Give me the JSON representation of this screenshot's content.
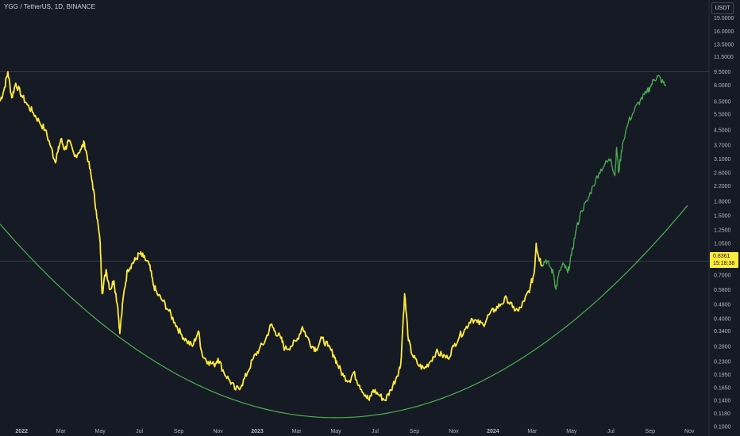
{
  "header": {
    "title": "YGG / TetherUS, 1D, BINANCE",
    "currency_button": "USDT"
  },
  "last_price": {
    "value": "0.8361",
    "countdown": "15:18:38"
  },
  "chart_data": {
    "type": "line",
    "scale": "log",
    "symbol": "YGG / TetherUS",
    "interval": "1D",
    "exchange": "BINANCE",
    "y_ticks": [
      "19.0000",
      "16.0000",
      "13.5000",
      "11.5000",
      "9.5000",
      "8.0000",
      "6.5000",
      "5.5000",
      "4.5000",
      "3.7000",
      "3.1000",
      "2.6000",
      "2.2000",
      "1.8000",
      "1.5000",
      "1.2500",
      "1.0500",
      "0.7000",
      "0.5800",
      "0.4800",
      "0.4000",
      "0.3400",
      "0.2800",
      "0.2300",
      "0.1950",
      "0.1650",
      "0.1400",
      "0.1180",
      "0.1000"
    ],
    "x_ticks": [
      "2022",
      "Mar",
      "May",
      "Jul",
      "Sep",
      "Nov",
      "2023",
      "Mar",
      "May",
      "Jul",
      "Sep",
      "Nov",
      "2024",
      "Mar",
      "May",
      "Jul",
      "Sep",
      "Nov"
    ],
    "x_tick_months": [
      0,
      2,
      4,
      6,
      8,
      10,
      12,
      14,
      16,
      18,
      20,
      22,
      24,
      26,
      28,
      30,
      32,
      34
    ],
    "ylim": [
      0.1,
      22
    ],
    "xlim_months": [
      -1.1,
      35
    ],
    "horizontal_lines": [
      9.5,
      0.8361
    ],
    "colors": {
      "history": "#ffeb3b",
      "recent": "#4caf50",
      "curve": "#4caf50",
      "background": "#161a25"
    },
    "series": [
      {
        "segment": "history",
        "points": [
          [
            -1.1,
            6.5
          ],
          [
            -0.9,
            7.5
          ],
          [
            -0.7,
            9.5
          ],
          [
            -0.5,
            6.8
          ],
          [
            -0.3,
            8.2
          ],
          [
            0,
            7.0
          ],
          [
            0.3,
            6.2
          ],
          [
            0.6,
            5.6
          ],
          [
            0.9,
            5.0
          ],
          [
            1.2,
            4.5
          ],
          [
            1.5,
            3.6
          ],
          [
            1.7,
            3.0
          ],
          [
            1.85,
            3.4
          ],
          [
            2.0,
            4.0
          ],
          [
            2.2,
            3.5
          ],
          [
            2.4,
            3.9
          ],
          [
            2.7,
            3.2
          ],
          [
            3.0,
            3.5
          ],
          [
            3.2,
            3.8
          ],
          [
            3.4,
            3.0
          ],
          [
            3.6,
            2.3
          ],
          [
            3.8,
            1.6
          ],
          [
            4.0,
            1.05
          ],
          [
            4.1,
            0.55
          ],
          [
            4.3,
            0.75
          ],
          [
            4.5,
            0.58
          ],
          [
            4.7,
            0.65
          ],
          [
            4.9,
            0.46
          ],
          [
            5.0,
            0.33
          ],
          [
            5.2,
            0.55
          ],
          [
            5.4,
            0.75
          ],
          [
            5.6,
            0.8
          ],
          [
            5.8,
            0.85
          ],
          [
            6.0,
            0.92
          ],
          [
            6.2,
            0.88
          ],
          [
            6.5,
            0.8
          ],
          [
            6.7,
            0.62
          ],
          [
            6.9,
            0.55
          ],
          [
            7.2,
            0.5
          ],
          [
            7.5,
            0.44
          ],
          [
            7.8,
            0.38
          ],
          [
            8.1,
            0.33
          ],
          [
            8.4,
            0.3
          ],
          [
            8.7,
            0.28
          ],
          [
            9.0,
            0.34
          ],
          [
            9.2,
            0.25
          ],
          [
            9.5,
            0.23
          ],
          [
            9.8,
            0.22
          ],
          [
            10.0,
            0.24
          ],
          [
            10.3,
            0.2
          ],
          [
            10.6,
            0.18
          ],
          [
            10.9,
            0.16
          ],
          [
            11.2,
            0.17
          ],
          [
            11.5,
            0.2
          ],
          [
            11.8,
            0.24
          ],
          [
            12.1,
            0.27
          ],
          [
            12.4,
            0.3
          ],
          [
            12.7,
            0.37
          ],
          [
            12.9,
            0.34
          ],
          [
            13.2,
            0.31
          ],
          [
            13.4,
            0.27
          ],
          [
            13.7,
            0.28
          ],
          [
            14.0,
            0.3
          ],
          [
            14.3,
            0.36
          ],
          [
            14.5,
            0.32
          ],
          [
            14.8,
            0.28
          ],
          [
            15.0,
            0.27
          ],
          [
            15.3,
            0.31
          ],
          [
            15.6,
            0.28
          ],
          [
            15.9,
            0.25
          ],
          [
            16.1,
            0.22
          ],
          [
            16.4,
            0.19
          ],
          [
            16.7,
            0.18
          ],
          [
            16.9,
            0.2
          ],
          [
            17.2,
            0.17
          ],
          [
            17.5,
            0.15
          ],
          [
            17.7,
            0.14
          ],
          [
            17.9,
            0.16
          ],
          [
            18.2,
            0.15
          ],
          [
            18.5,
            0.14
          ],
          [
            18.8,
            0.16
          ],
          [
            19.1,
            0.19
          ],
          [
            19.3,
            0.22
          ],
          [
            19.5,
            0.55
          ],
          [
            19.7,
            0.3
          ],
          [
            19.9,
            0.25
          ],
          [
            20.2,
            0.22
          ],
          [
            20.5,
            0.21
          ],
          [
            20.8,
            0.23
          ],
          [
            21.1,
            0.26
          ],
          [
            21.4,
            0.25
          ],
          [
            21.7,
            0.24
          ],
          [
            22.0,
            0.28
          ],
          [
            22.3,
            0.32
          ],
          [
            22.6,
            0.35
          ],
          [
            22.9,
            0.4
          ],
          [
            23.2,
            0.38
          ],
          [
            23.5,
            0.37
          ],
          [
            23.8,
            0.42
          ],
          [
            24.1,
            0.45
          ],
          [
            24.4,
            0.48
          ],
          [
            24.7,
            0.52
          ],
          [
            25.0,
            0.46
          ],
          [
            25.3,
            0.44
          ],
          [
            25.6,
            0.5
          ],
          [
            25.9,
            0.6
          ],
          [
            26.1,
            0.72
          ],
          [
            26.2,
            1.05
          ],
          [
            26.3,
            0.9
          ],
          [
            26.5,
            0.8
          ]
        ]
      },
      {
        "segment": "recent",
        "points": [
          [
            26.5,
            0.8
          ],
          [
            26.7,
            0.85
          ],
          [
            26.9,
            0.78
          ],
          [
            27.1,
            0.7
          ],
          [
            27.2,
            0.58
          ],
          [
            27.4,
            0.74
          ],
          [
            27.6,
            0.8
          ],
          [
            27.8,
            0.72
          ],
          [
            28.0,
            0.9
          ],
          [
            28.2,
            1.2
          ],
          [
            28.5,
            1.6
          ],
          [
            28.8,
            1.8
          ],
          [
            29.1,
            2.2
          ],
          [
            29.4,
            2.6
          ],
          [
            29.7,
            2.9
          ],
          [
            30.0,
            3.1
          ],
          [
            30.2,
            2.5
          ],
          [
            30.3,
            3.6
          ],
          [
            30.4,
            2.6
          ],
          [
            30.6,
            3.8
          ],
          [
            30.9,
            5.0
          ],
          [
            31.2,
            5.8
          ],
          [
            31.5,
            6.6
          ],
          [
            31.8,
            7.2
          ],
          [
            32.0,
            7.8
          ],
          [
            32.2,
            8.6
          ],
          [
            32.4,
            9.0
          ],
          [
            32.6,
            8.4
          ],
          [
            32.8,
            7.9
          ]
        ]
      }
    ],
    "support_curve": {
      "vertex_month": 16.0,
      "vertex_price": 0.112,
      "a": 0.0085
    }
  }
}
